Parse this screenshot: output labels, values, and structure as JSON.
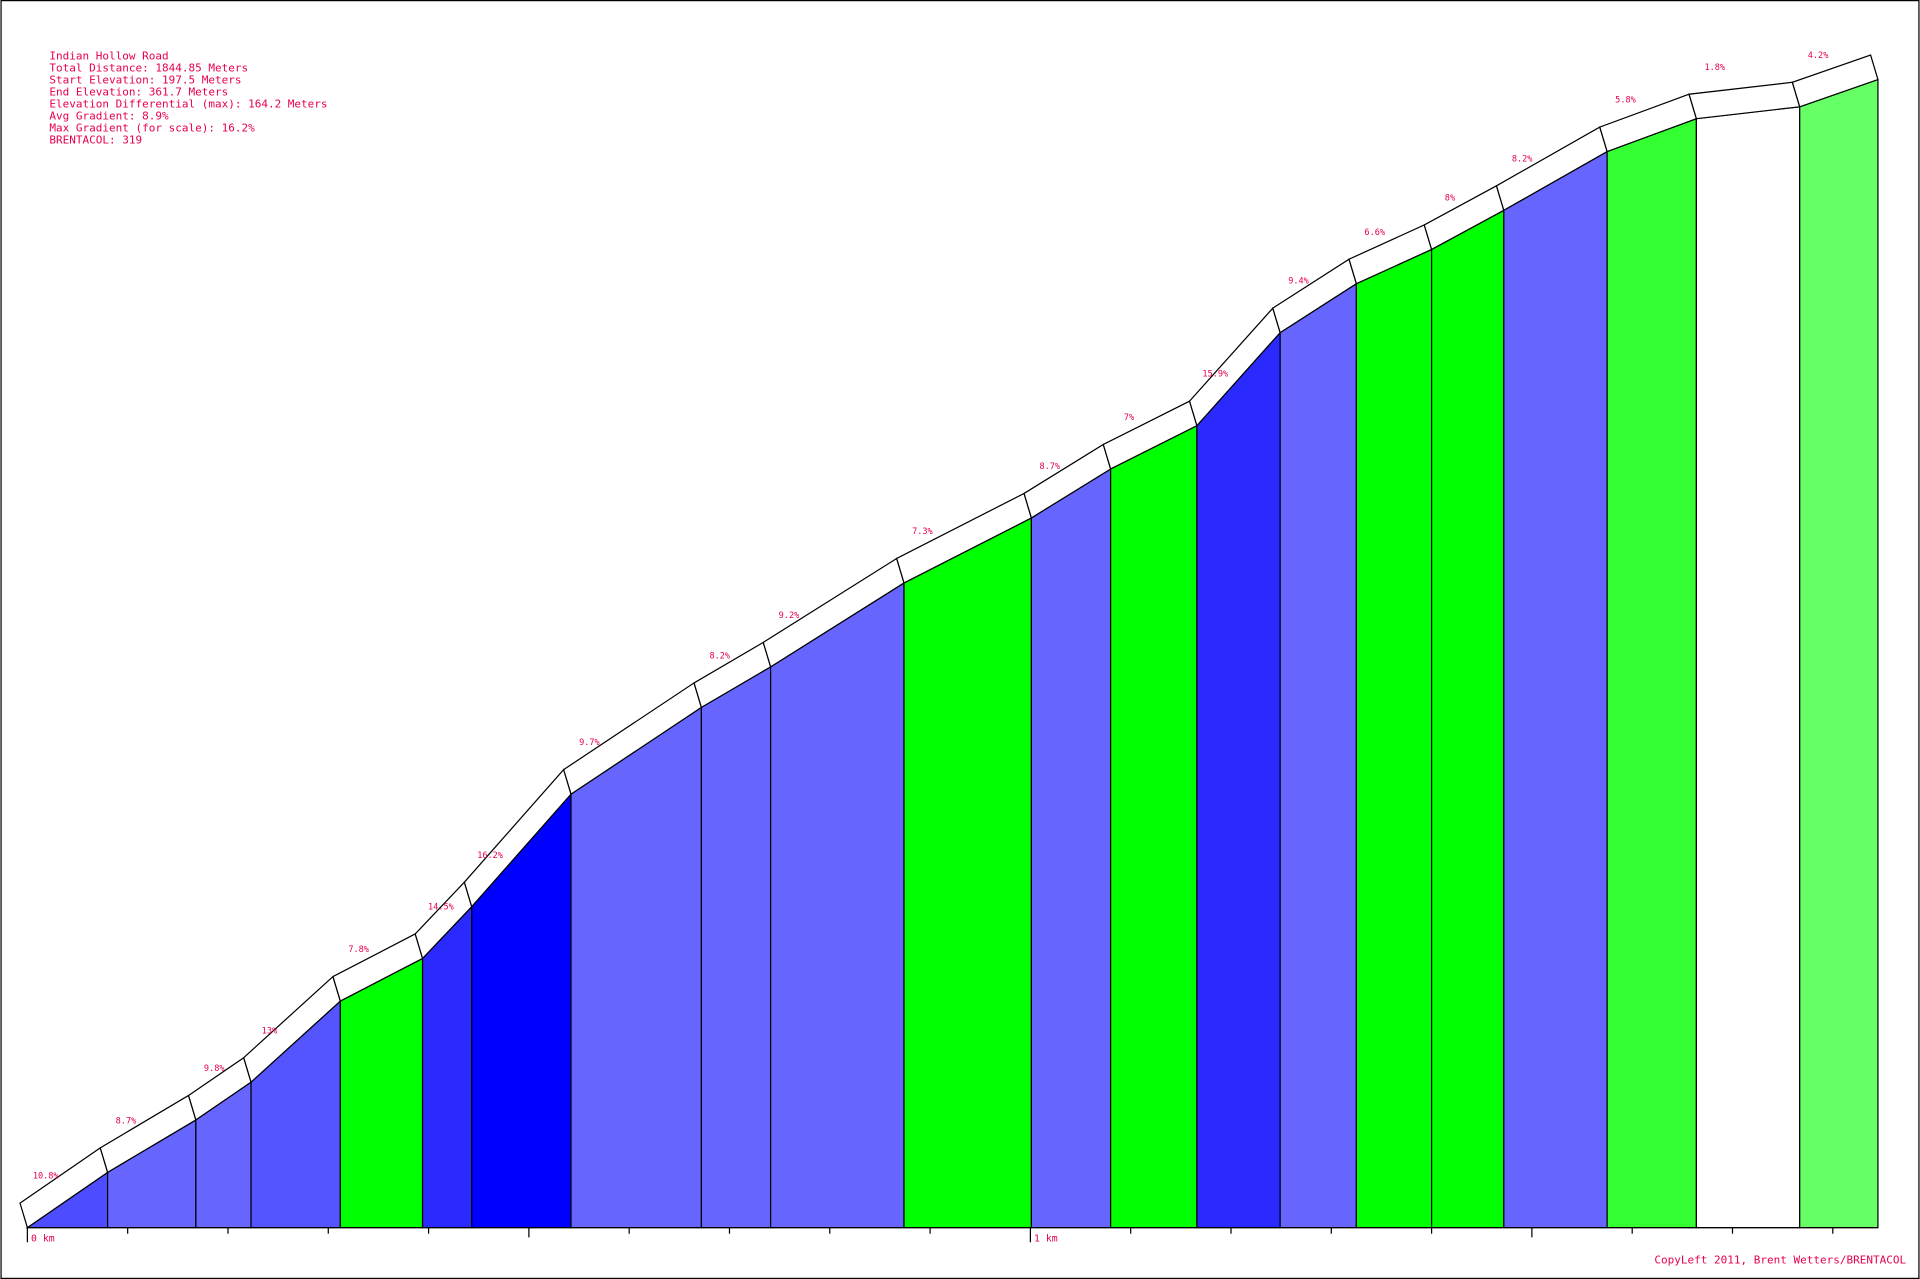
{
  "chart_data": {
    "type": "profile",
    "title": "Indian Hollow Road",
    "info": [
      "Total Distance: 1844.85 Meters",
      "Start Elevation: 197.5 Meters",
      "End Elevation: 361.7 Meters",
      "Elevation Differential (max): 164.2 Meters",
      "Avg Gradient: 8.9%",
      "Max Gradient (for scale): 16.2%",
      "BRENTACOL: 319"
    ],
    "distance": [
      0,
      0.08,
      0.168,
      0.223,
      0.312,
      0.394,
      0.443,
      0.542,
      0.672,
      0.741,
      0.874,
      1.001,
      1.08,
      1.166,
      1.249,
      1.325,
      1.4,
      1.472,
      1.575,
      1.664,
      1.767,
      1.845
    ],
    "elevation": [
      197.5,
      205.4,
      212.9,
      218.3,
      229.9,
      236.0,
      243.4,
      259.5,
      271.9,
      277.7,
      289.7,
      299.0,
      306.0,
      312.2,
      325.5,
      332.5,
      337.4,
      343.0,
      351.4,
      356.1,
      357.8,
      361.7
    ],
    "gradients": [
      10.8,
      8.7,
      9.8,
      13,
      7.8,
      14.5,
      16.2,
      9.7,
      8.2,
      9.2,
      7.3,
      8.7,
      7,
      15.9,
      9.4,
      6.6,
      8,
      8.2,
      5.8,
      1.8,
      4.2
    ],
    "value_labels": [
      "10.8%",
      "8.7%",
      "9.8%",
      "13%",
      "7.8%",
      "14.5%",
      "16.2%",
      "9.7%",
      "8.2%",
      "9.2%",
      "7.3%",
      "8.7%",
      "7%",
      "15.9%",
      "9.4%",
      "6.6%",
      "8%",
      "8.2%",
      "5.8%",
      "1.8%",
      "4.2%"
    ],
    "colors": [
      "#4d4dff",
      "#6666ff",
      "#6666ff",
      "#5555ff",
      "#00ff00",
      "#2a2aff",
      "#0000ff",
      "#6666ff",
      "#6666ff",
      "#6666ff",
      "#00ff00",
      "#6666ff",
      "#00ff00",
      "#2a2aff",
      "#6666ff",
      "#00ff00",
      "#00ff00",
      "#6666ff",
      "#33ff33",
      "#ffffff",
      "#66ff66"
    ],
    "xlim": [
      0,
      1.845
    ],
    "ylim": [
      197.5,
      372.9
    ],
    "xticks": [
      {
        "value": 0,
        "label": "0 km"
      },
      {
        "value": 1,
        "label": "1 km"
      }
    ],
    "xminor": [
      0.1,
      0.2,
      0.3,
      0.4,
      0.5,
      0.6,
      0.7,
      0.8,
      0.9,
      1.1,
      1.2,
      1.3,
      1.4,
      1.5,
      1.6,
      1.7,
      1.8
    ],
    "footer": "CopyLeft 2011, Brent Wetters/BRENTACOL"
  }
}
